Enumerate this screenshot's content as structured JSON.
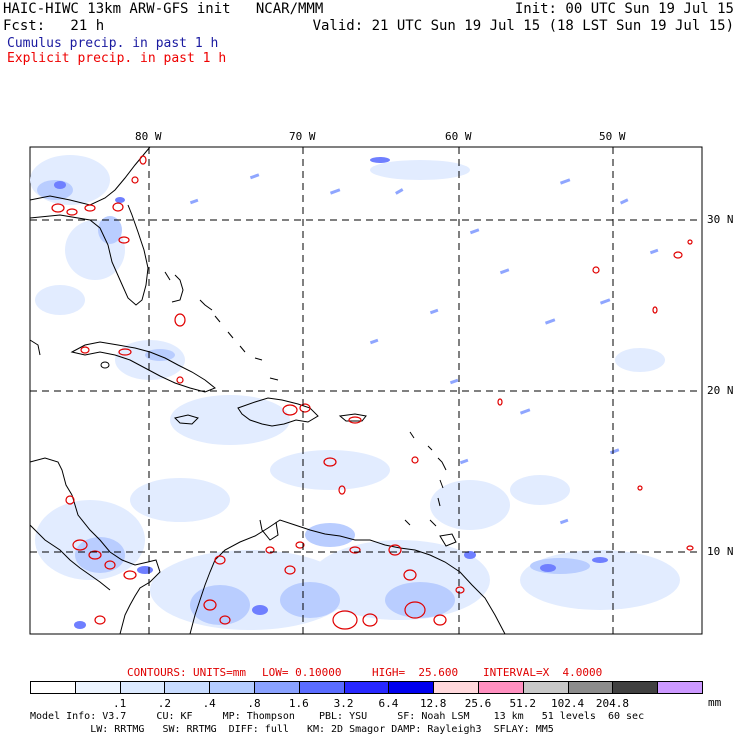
{
  "header": {
    "title_left": "HAIC-HIWC 13km ARW-GFS init   NCAR/MMM",
    "forecast_left": "Fcst:   21 h",
    "init": "Init: 00 UTC Sun 19 Jul 15",
    "valid": "Valid: 21 UTC Sun 19 Jul 15 (18 LST Sun 19 Jul 15)",
    "legend_cumulus": "Cumulus precip. in past 1 h",
    "legend_explicit": "Explicit precip. in past 1 h",
    "colors": {
      "cumulus": "#0000cc",
      "explicit": "#ff0000"
    }
  },
  "map": {
    "lon_labels": [
      "80 W",
      "70 W",
      "60 W",
      "50 W"
    ],
    "lat_labels": [
      "30 N",
      "20 N",
      "10 N"
    ]
  },
  "contours_line": {
    "label": "CONTOURS:",
    "units": "UNITS=mm",
    "low": "LOW= 0.10000",
    "high": "HIGH=  25.600",
    "interval": "INTERVAL=X  4.0000"
  },
  "colorbar": {
    "unit": "mm",
    "labels": [
      ".1",
      ".2",
      ".4",
      ".8",
      "1.6",
      "3.2",
      "6.4",
      "12.8",
      "25.6",
      "51.2",
      "102.4",
      "204.8"
    ],
    "colors": [
      "#ffffff",
      "#ecf4ff",
      "#dceaff",
      "#c8dcff",
      "#b4ccff",
      "#8aa2ff",
      "#5a6cff",
      "#2828ff",
      "#0000ee",
      "#ffd8dc",
      "#ff90c0",
      "#c8c8c8",
      "#8c8c8c",
      "#404040",
      "#cc99ff"
    ]
  },
  "footer": {
    "line1": "Model Info: V3.7     CU: KF     MP: Thompson    PBL: YSU     SF: Noah LSM    13 km   51 levels  60 sec",
    "line2": "          LW: RRTMG   SW: RRTMG  DIFF: full   KM: 2D Smagor DAMP: Rayleigh3  SFLAY: MM5"
  }
}
